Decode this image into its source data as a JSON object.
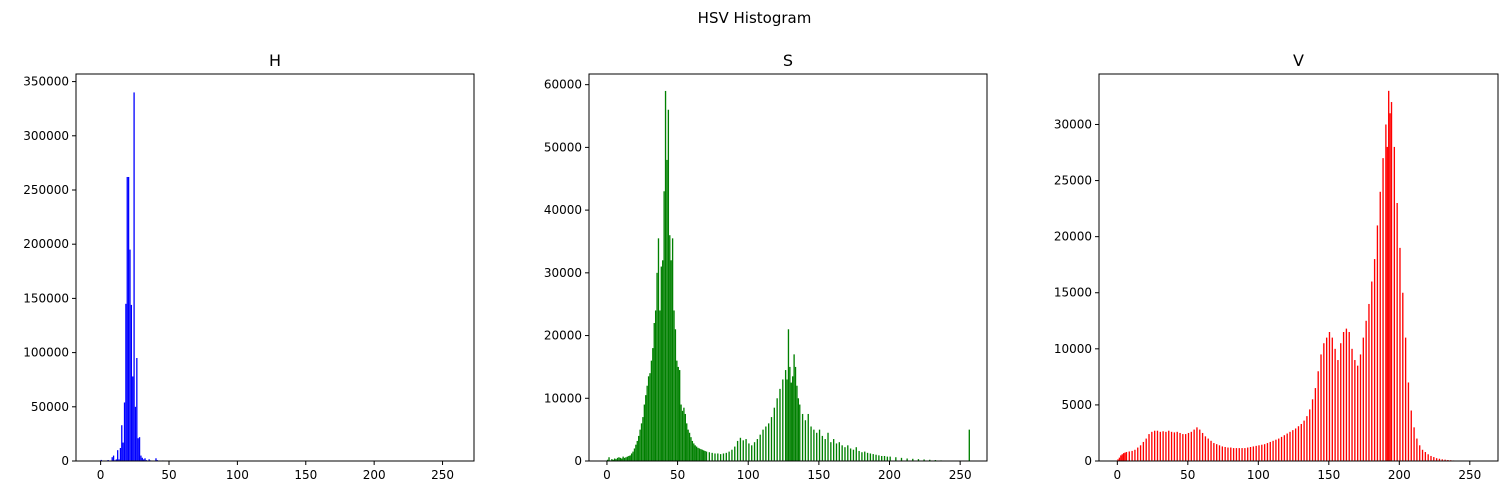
{
  "figure": {
    "suptitle": "HSV Histogram"
  },
  "chart_data": [
    {
      "type": "bar",
      "title": "H",
      "xlabel": "",
      "ylabel": "",
      "color": "#0000ff",
      "xlim": [
        -18,
        273
      ],
      "ylim": [
        0,
        357000
      ],
      "xticks": [
        0,
        50,
        100,
        150,
        200,
        250
      ],
      "yticks": [
        0,
        50000,
        100000,
        150000,
        200000,
        250000,
        300000,
        350000
      ],
      "grid": false,
      "bins": [
        [
          0,
          1000
        ],
        [
          2,
          300
        ],
        [
          5,
          900
        ],
        [
          8,
          3500
        ],
        [
          9,
          5000
        ],
        [
          10,
          700
        ],
        [
          11,
          1500
        ],
        [
          12,
          10000
        ],
        [
          13,
          1500
        ],
        [
          14,
          12000
        ],
        [
          15,
          33000
        ],
        [
          16,
          17000
        ],
        [
          17,
          54000
        ],
        [
          18,
          145000
        ],
        [
          19,
          262000
        ],
        [
          20,
          262000
        ],
        [
          21,
          195000
        ],
        [
          22,
          144000
        ],
        [
          23,
          78000
        ],
        [
          24,
          340000
        ],
        [
          25,
          50000
        ],
        [
          26,
          95000
        ],
        [
          27,
          21000
        ],
        [
          28,
          22000
        ],
        [
          29,
          5000
        ],
        [
          30,
          3000
        ],
        [
          31,
          1500
        ],
        [
          32,
          2500
        ],
        [
          33,
          800
        ],
        [
          35,
          1600
        ],
        [
          36,
          600
        ],
        [
          38,
          300
        ],
        [
          40,
          2500
        ],
        [
          41,
          800
        ],
        [
          42,
          200
        ],
        [
          45,
          500
        ],
        [
          48,
          200
        ],
        [
          52,
          300
        ],
        [
          56,
          150
        ],
        [
          60,
          100
        ],
        [
          70,
          80
        ],
        [
          90,
          50
        ],
        [
          110,
          40
        ],
        [
          130,
          30
        ],
        [
          150,
          30
        ],
        [
          170,
          20
        ],
        [
          200,
          20
        ],
        [
          230,
          15
        ],
        [
          255,
          10
        ]
      ]
    },
    {
      "type": "bar",
      "title": "S",
      "xlabel": "",
      "ylabel": "",
      "color": "#008000",
      "xlim": [
        -12.7,
        269
      ],
      "ylim": [
        0,
        61700
      ],
      "xticks": [
        0,
        50,
        100,
        150,
        200,
        250
      ],
      "yticks": [
        0,
        10000,
        20000,
        30000,
        40000,
        50000,
        60000
      ],
      "grid": false,
      "bins": [
        [
          0,
          200
        ],
        [
          1,
          600
        ],
        [
          2,
          100
        ],
        [
          3,
          300
        ],
        [
          4,
          200
        ],
        [
          5,
          400
        ],
        [
          6,
          300
        ],
        [
          7,
          500
        ],
        [
          8,
          600
        ],
        [
          9,
          500
        ],
        [
          10,
          400
        ],
        [
          11,
          700
        ],
        [
          12,
          500
        ],
        [
          13,
          600
        ],
        [
          14,
          700
        ],
        [
          15,
          800
        ],
        [
          16,
          900
        ],
        [
          17,
          1200
        ],
        [
          18,
          1500
        ],
        [
          19,
          2000
        ],
        [
          20,
          2600
        ],
        [
          21,
          3200
        ],
        [
          22,
          4000
        ],
        [
          23,
          5000
        ],
        [
          24,
          6000
        ],
        [
          25,
          7000
        ],
        [
          26,
          9000
        ],
        [
          27,
          10500
        ],
        [
          28,
          12000
        ],
        [
          29,
          13500
        ],
        [
          30,
          14000
        ],
        [
          31,
          16000
        ],
        [
          32,
          18000
        ],
        [
          33,
          22000
        ],
        [
          34,
          24000
        ],
        [
          35,
          30000
        ],
        [
          36,
          35500
        ],
        [
          37,
          24000
        ],
        [
          38,
          31000
        ],
        [
          39,
          32000
        ],
        [
          40,
          43000
        ],
        [
          41,
          59000
        ],
        [
          42,
          48000
        ],
        [
          43,
          56000
        ],
        [
          44,
          36000
        ],
        [
          45,
          32000
        ],
        [
          46,
          35500
        ],
        [
          47,
          24000
        ],
        [
          48,
          21000
        ],
        [
          49,
          16000
        ],
        [
          50,
          15000
        ],
        [
          51,
          14500
        ],
        [
          52,
          9000
        ],
        [
          53,
          8000
        ],
        [
          54,
          8500
        ],
        [
          55,
          7500
        ],
        [
          56,
          6000
        ],
        [
          57,
          5000
        ],
        [
          58,
          4500
        ],
        [
          59,
          3800
        ],
        [
          60,
          3200
        ],
        [
          61,
          2800
        ],
        [
          62,
          2500
        ],
        [
          63,
          2300
        ],
        [
          64,
          2100
        ],
        [
          65,
          2000
        ],
        [
          66,
          1900
        ],
        [
          67,
          1800
        ],
        [
          68,
          1700
        ],
        [
          69,
          1600
        ],
        [
          70,
          1500
        ],
        [
          72,
          1400
        ],
        [
          74,
          1300
        ],
        [
          76,
          1200
        ],
        [
          78,
          1200
        ],
        [
          80,
          1100
        ],
        [
          82,
          1200
        ],
        [
          84,
          1300
        ],
        [
          86,
          1500
        ],
        [
          88,
          1800
        ],
        [
          90,
          2300
        ],
        [
          92,
          3200
        ],
        [
          94,
          3700
        ],
        [
          96,
          3300
        ],
        [
          98,
          3500
        ],
        [
          100,
          2800
        ],
        [
          102,
          2500
        ],
        [
          104,
          3000
        ],
        [
          106,
          3500
        ],
        [
          108,
          4200
        ],
        [
          110,
          5000
        ],
        [
          112,
          5500
        ],
        [
          114,
          6000
        ],
        [
          116,
          7000
        ],
        [
          118,
          8500
        ],
        [
          120,
          10000
        ],
        [
          122,
          11500
        ],
        [
          124,
          13000
        ],
        [
          126,
          14500
        ],
        [
          127,
          13000
        ],
        [
          128,
          21000
        ],
        [
          129,
          15000
        ],
        [
          130,
          12500
        ],
        [
          131,
          13500
        ],
        [
          132,
          17000
        ],
        [
          133,
          15000
        ],
        [
          134,
          12000
        ],
        [
          135,
          10000
        ],
        [
          136,
          9000
        ],
        [
          138,
          7500
        ],
        [
          140,
          6500
        ],
        [
          142,
          7500
        ],
        [
          144,
          5500
        ],
        [
          146,
          5000
        ],
        [
          148,
          4500
        ],
        [
          150,
          5000
        ],
        [
          152,
          4000
        ],
        [
          154,
          3500
        ],
        [
          156,
          4500
        ],
        [
          158,
          3000
        ],
        [
          160,
          3500
        ],
        [
          162,
          2800
        ],
        [
          164,
          3000
        ],
        [
          166,
          2500
        ],
        [
          168,
          2200
        ],
        [
          170,
          2500
        ],
        [
          172,
          2000
        ],
        [
          174,
          1800
        ],
        [
          176,
          2200
        ],
        [
          178,
          1600
        ],
        [
          180,
          1400
        ],
        [
          182,
          1500
        ],
        [
          184,
          1300
        ],
        [
          186,
          1200
        ],
        [
          188,
          1100
        ],
        [
          190,
          1000
        ],
        [
          192,
          900
        ],
        [
          194,
          800
        ],
        [
          196,
          800
        ],
        [
          198,
          700
        ],
        [
          200,
          700
        ],
        [
          204,
          600
        ],
        [
          208,
          500
        ],
        [
          212,
          400
        ],
        [
          216,
          350
        ],
        [
          220,
          300
        ],
        [
          224,
          250
        ],
        [
          228,
          200
        ],
        [
          232,
          150
        ],
        [
          236,
          100
        ],
        [
          240,
          80
        ],
        [
          245,
          50
        ],
        [
          250,
          30
        ],
        [
          256,
          5000
        ]
      ]
    },
    {
      "type": "bar",
      "title": "V",
      "xlabel": "",
      "ylabel": "",
      "color": "#ff0000",
      "xlim": [
        -13,
        270
      ],
      "ylim": [
        0,
        34500
      ],
      "xticks": [
        0,
        50,
        100,
        150,
        200,
        250
      ],
      "yticks": [
        0,
        5000,
        10000,
        15000,
        20000,
        25000,
        30000
      ],
      "grid": false,
      "bins": [
        [
          0,
          150
        ],
        [
          1,
          300
        ],
        [
          2,
          500
        ],
        [
          3,
          600
        ],
        [
          4,
          700
        ],
        [
          5,
          750
        ],
        [
          6,
          800
        ],
        [
          8,
          850
        ],
        [
          10,
          900
        ],
        [
          12,
          1000
        ],
        [
          14,
          1200
        ],
        [
          16,
          1400
        ],
        [
          18,
          1700
        ],
        [
          20,
          2000
        ],
        [
          22,
          2400
        ],
        [
          24,
          2600
        ],
        [
          26,
          2700
        ],
        [
          28,
          2700
        ],
        [
          30,
          2600
        ],
        [
          32,
          2650
        ],
        [
          34,
          2600
        ],
        [
          36,
          2700
        ],
        [
          38,
          2600
        ],
        [
          40,
          2550
        ],
        [
          42,
          2600
        ],
        [
          44,
          2500
        ],
        [
          46,
          2400
        ],
        [
          48,
          2400
        ],
        [
          50,
          2500
        ],
        [
          52,
          2600
        ],
        [
          54,
          2800
        ],
        [
          56,
          3000
        ],
        [
          58,
          2800
        ],
        [
          60,
          2500
        ],
        [
          62,
          2200
        ],
        [
          64,
          2000
        ],
        [
          66,
          1800
        ],
        [
          68,
          1600
        ],
        [
          70,
          1500
        ],
        [
          72,
          1400
        ],
        [
          74,
          1300
        ],
        [
          76,
          1250
        ],
        [
          78,
          1200
        ],
        [
          80,
          1200
        ],
        [
          82,
          1150
        ],
        [
          84,
          1150
        ],
        [
          86,
          1150
        ],
        [
          88,
          1150
        ],
        [
          90,
          1150
        ],
        [
          92,
          1200
        ],
        [
          94,
          1250
        ],
        [
          96,
          1300
        ],
        [
          98,
          1350
        ],
        [
          100,
          1400
        ],
        [
          102,
          1450
        ],
        [
          104,
          1500
        ],
        [
          106,
          1600
        ],
        [
          108,
          1700
        ],
        [
          110,
          1800
        ],
        [
          112,
          1900
        ],
        [
          114,
          2000
        ],
        [
          116,
          2150
        ],
        [
          118,
          2300
        ],
        [
          120,
          2450
        ],
        [
          122,
          2600
        ],
        [
          124,
          2750
        ],
        [
          126,
          2900
        ],
        [
          128,
          3100
        ],
        [
          130,
          3300
        ],
        [
          132,
          3600
        ],
        [
          134,
          4000
        ],
        [
          136,
          4600
        ],
        [
          138,
          5500
        ],
        [
          140,
          6500
        ],
        [
          142,
          8000
        ],
        [
          144,
          9500
        ],
        [
          146,
          10500
        ],
        [
          148,
          11000
        ],
        [
          150,
          11500
        ],
        [
          152,
          11000
        ],
        [
          154,
          10000
        ],
        [
          156,
          9000
        ],
        [
          158,
          10500
        ],
        [
          160,
          11500
        ],
        [
          162,
          11800
        ],
        [
          164,
          11500
        ],
        [
          166,
          10000
        ],
        [
          168,
          9000
        ],
        [
          170,
          8500
        ],
        [
          172,
          9500
        ],
        [
          174,
          11000
        ],
        [
          176,
          12500
        ],
        [
          178,
          14000
        ],
        [
          180,
          16000
        ],
        [
          182,
          18000
        ],
        [
          184,
          21000
        ],
        [
          186,
          24000
        ],
        [
          188,
          27000
        ],
        [
          190,
          30000
        ],
        [
          191,
          28000
        ],
        [
          192,
          33000
        ],
        [
          193,
          31000
        ],
        [
          194,
          32000
        ],
        [
          196,
          28000
        ],
        [
          198,
          23000
        ],
        [
          200,
          19000
        ],
        [
          202,
          15000
        ],
        [
          204,
          11000
        ],
        [
          206,
          7000
        ],
        [
          208,
          4500
        ],
        [
          210,
          3000
        ],
        [
          212,
          2000
        ],
        [
          214,
          1400
        ],
        [
          216,
          1000
        ],
        [
          218,
          800
        ],
        [
          220,
          600
        ],
        [
          222,
          450
        ],
        [
          224,
          350
        ],
        [
          226,
          250
        ],
        [
          228,
          200
        ],
        [
          230,
          150
        ],
        [
          232,
          120
        ],
        [
          234,
          90
        ],
        [
          236,
          70
        ],
        [
          238,
          50
        ],
        [
          240,
          35
        ],
        [
          242,
          25
        ],
        [
          245,
          10
        ]
      ]
    }
  ]
}
